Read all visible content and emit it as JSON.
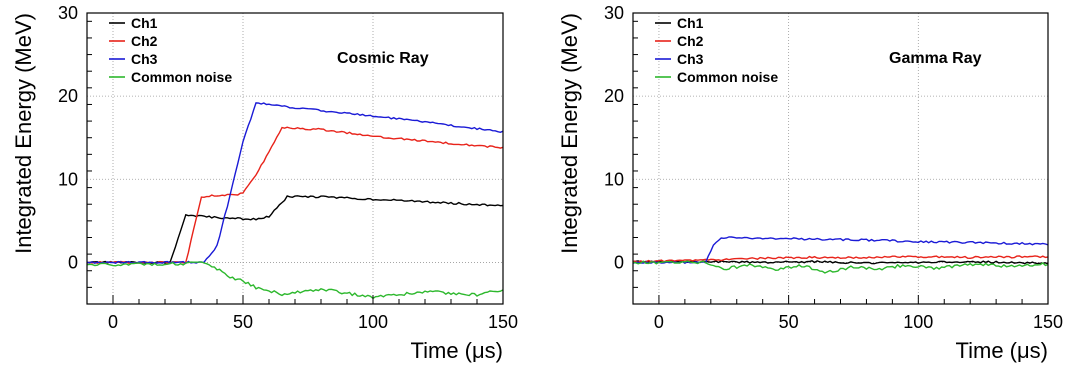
{
  "chart_data": [
    {
      "type": "line",
      "annotation": "Cosmic Ray",
      "xlabel": "Time (μs)",
      "ylabel": "Integrated Energy (MeV)",
      "xlim": [
        -10,
        150
      ],
      "ylim": [
        -5,
        30
      ],
      "xticks": [
        0,
        50,
        100,
        150
      ],
      "yticks": [
        0,
        10,
        20,
        30
      ],
      "grid": true,
      "legend_position": "top-left",
      "series": [
        {
          "name": "Ch1",
          "color": "#000000",
          "x": [
            -10,
            22,
            28,
            35,
            45,
            55,
            60,
            67,
            80,
            100,
            120,
            150
          ],
          "y": [
            0,
            0,
            5.7,
            5.5,
            5.3,
            5.2,
            5.5,
            7.9,
            7.9,
            7.6,
            7.3,
            6.8
          ]
        },
        {
          "name": "Ch2",
          "color": "#e8231a",
          "x": [
            -10,
            28,
            34,
            40,
            45,
            50,
            55,
            65,
            80,
            100,
            120,
            150
          ],
          "y": [
            0,
            0,
            7.8,
            8.1,
            8.1,
            8.3,
            10.5,
            16.2,
            16.0,
            15.2,
            14.6,
            13.8
          ]
        },
        {
          "name": "Ch3",
          "color": "#1a1ad6",
          "x": [
            -10,
            35,
            40,
            45,
            50,
            55,
            70,
            100,
            120,
            150
          ],
          "y": [
            0,
            0,
            2.0,
            8.0,
            14.5,
            19.2,
            18.6,
            17.6,
            16.9,
            15.7
          ]
        },
        {
          "name": "Common noise",
          "color": "#2db82d",
          "x": [
            -10,
            35,
            40,
            45,
            50,
            55,
            65,
            80,
            100,
            120,
            140,
            150
          ],
          "y": [
            -0.3,
            -0.1,
            -0.8,
            -1.8,
            -2.2,
            -3.0,
            -3.8,
            -3.2,
            -4.2,
            -3.5,
            -3.9,
            -3.3
          ]
        }
      ]
    },
    {
      "type": "line",
      "annotation": "Gamma Ray",
      "xlabel": "Time (μs)",
      "ylabel": "Integrated Energy (MeV)",
      "xlim": [
        -10,
        150
      ],
      "ylim": [
        -5,
        30
      ],
      "xticks": [
        0,
        50,
        100,
        150
      ],
      "yticks": [
        0,
        10,
        20,
        30
      ],
      "grid": true,
      "legend_position": "top-left",
      "series": [
        {
          "name": "Ch1",
          "color": "#000000",
          "x": [
            -10,
            20,
            40,
            60,
            80,
            100,
            120,
            150
          ],
          "y": [
            0.1,
            0.1,
            0,
            0.1,
            -0.1,
            0,
            0.1,
            -0.1
          ]
        },
        {
          "name": "Ch2",
          "color": "#e8231a",
          "x": [
            -10,
            20,
            40,
            60,
            80,
            100,
            120,
            150
          ],
          "y": [
            0.1,
            0.3,
            0.5,
            0.6,
            0.6,
            0.7,
            0.6,
            0.7
          ]
        },
        {
          "name": "Ch3",
          "color": "#1a1ad6",
          "x": [
            -10,
            18,
            21,
            24,
            40,
            60,
            80,
            100,
            120,
            150
          ],
          "y": [
            0,
            0,
            2.0,
            3.0,
            2.9,
            2.8,
            2.7,
            2.5,
            2.4,
            2.2
          ]
        },
        {
          "name": "Common noise",
          "color": "#2db82d",
          "x": [
            -10,
            18,
            25,
            35,
            45,
            55,
            65,
            75,
            85,
            95,
            105,
            115,
            125,
            135,
            150
          ],
          "y": [
            0,
            0,
            -0.8,
            -0.3,
            -0.8,
            -0.4,
            -1.2,
            -0.5,
            -0.8,
            -0.3,
            -0.7,
            -0.4,
            -0.2,
            -0.5,
            -0.2
          ]
        }
      ]
    }
  ]
}
